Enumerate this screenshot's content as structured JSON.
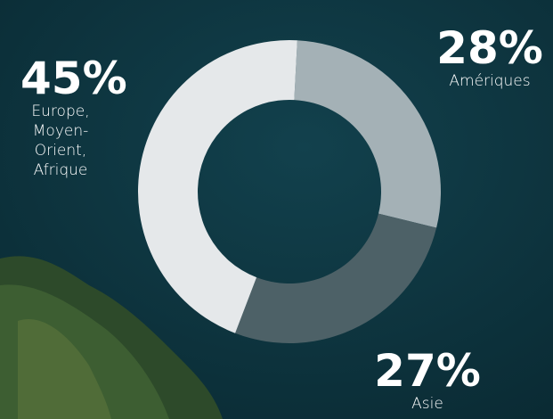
{
  "chart_data": {
    "type": "donut",
    "categories": [
      "Amériques",
      "Asie",
      "Europe, Moyen-Orient, Afrique"
    ],
    "values": [
      28,
      27,
      45
    ],
    "value_labels": [
      "28%",
      "27%",
      "45%"
    ],
    "colors": [
      "#a4b1b6",
      "#4d6167",
      "#e5e8ea"
    ]
  }
}
